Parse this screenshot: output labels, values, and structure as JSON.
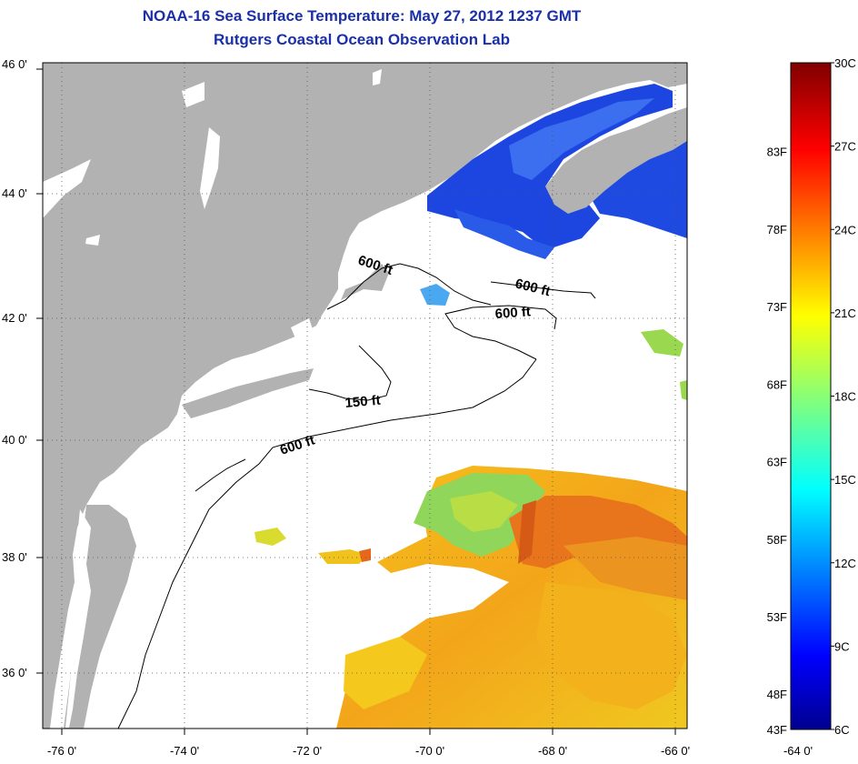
{
  "title": {
    "line1": "NOAA-16 Sea Surface Temperature:  May 27, 2012 1237 GMT",
    "line2": "Rutgers Coastal Ocean Observation Lab"
  },
  "map": {
    "lon_ticks": [
      "-76 0'",
      "-74 0'",
      "-72 0'",
      "-70 0'",
      "-68 0'",
      "-66 0'",
      "-64 0'"
    ],
    "lat_ticks": [
      "46 0'",
      "44 0'",
      "42 0'",
      "40 0'",
      "38 0'",
      "36 0'"
    ],
    "contour_labels": [
      "600 ft",
      "600 ft",
      "600 ft",
      "150 ft",
      "600 ft"
    ],
    "colors": {
      "land": "#b2b2b2",
      "cloud": "#ffffff"
    }
  },
  "colorbar": {
    "celsius": [
      "30C",
      "27C",
      "24C",
      "21C",
      "18C",
      "15C",
      "12C",
      "9C",
      "6C"
    ],
    "fahrenheit": [
      "83F",
      "78F",
      "73F",
      "68F",
      "63F",
      "58F",
      "53F",
      "48F",
      "43F"
    ]
  }
}
